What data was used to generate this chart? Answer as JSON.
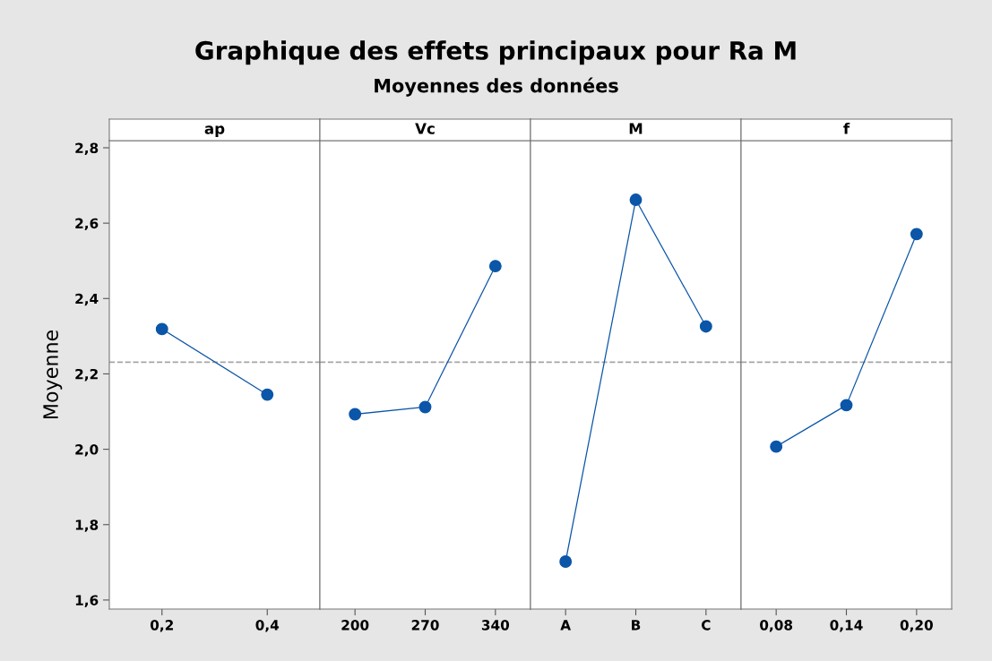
{
  "chart_data": [
    {
      "type": "other",
      "title": "Graphique des effets principaux pour Ra M",
      "subtitle": "Moyennes des données"
    },
    {
      "type": "line",
      "ylabel": "Moyenne",
      "title": "ap",
      "categories": [
        "0,2",
        "0,4"
      ],
      "series": [
        {
          "color": "#0b56a8",
          "values": [
            2.319,
            2.145
          ]
        }
      ],
      "marker": "circle",
      "line_style": "solid",
      "ylim": [
        1.576,
        2.819
      ],
      "yticks": [
        {
          "value": 1.6,
          "label": "1,6"
        },
        {
          "value": 1.8,
          "label": "1,8"
        },
        {
          "value": 2.0,
          "label": "2,0"
        },
        {
          "value": 2.2,
          "label": "2,2"
        },
        {
          "value": 2.4,
          "label": "2,4"
        },
        {
          "value": 2.6,
          "label": "2,6"
        },
        {
          "value": 2.8,
          "label": "2,8"
        }
      ],
      "ref_lines": [
        {
          "axis": "y",
          "value": 2.231,
          "color": "#a6a6a6",
          "line_style": "dashed"
        }
      ],
      "grid": false,
      "legend": false
    },
    {
      "type": "line",
      "title": "Vc",
      "categories": [
        "200",
        "270",
        "340"
      ],
      "series": [
        {
          "color": "#0b56a8",
          "values": [
            2.093,
            2.112,
            2.486
          ]
        }
      ],
      "marker": "circle",
      "line_style": "solid",
      "ylim": [
        1.576,
        2.819
      ],
      "tick_labels": "x",
      "ref_lines": [
        {
          "axis": "y",
          "value": 2.231,
          "color": "#a6a6a6",
          "line_style": "dashed"
        }
      ],
      "grid": false,
      "legend": false
    },
    {
      "type": "line",
      "title": "M",
      "categories": [
        "A",
        "B",
        "C"
      ],
      "series": [
        {
          "color": "#0b56a8",
          "values": [
            1.702,
            2.662,
            2.326
          ]
        }
      ],
      "marker": "circle",
      "line_style": "solid",
      "ylim": [
        1.576,
        2.819
      ],
      "tick_labels": "x",
      "ref_lines": [
        {
          "axis": "y",
          "value": 2.231,
          "color": "#a6a6a6",
          "line_style": "dashed"
        }
      ],
      "grid": false,
      "legend": false
    },
    {
      "type": "line",
      "title": "f",
      "categories": [
        "0,08",
        "0,14",
        "0,20"
      ],
      "series": [
        {
          "color": "#0b56a8",
          "values": [
            2.007,
            2.117,
            2.571
          ]
        }
      ],
      "marker": "circle",
      "line_style": "solid",
      "ylim": [
        1.576,
        2.819
      ],
      "tick_labels": "x",
      "ref_lines": [
        {
          "axis": "y",
          "value": 2.231,
          "color": "#a6a6a6",
          "line_style": "dashed"
        }
      ],
      "grid": false,
      "legend": false
    }
  ]
}
